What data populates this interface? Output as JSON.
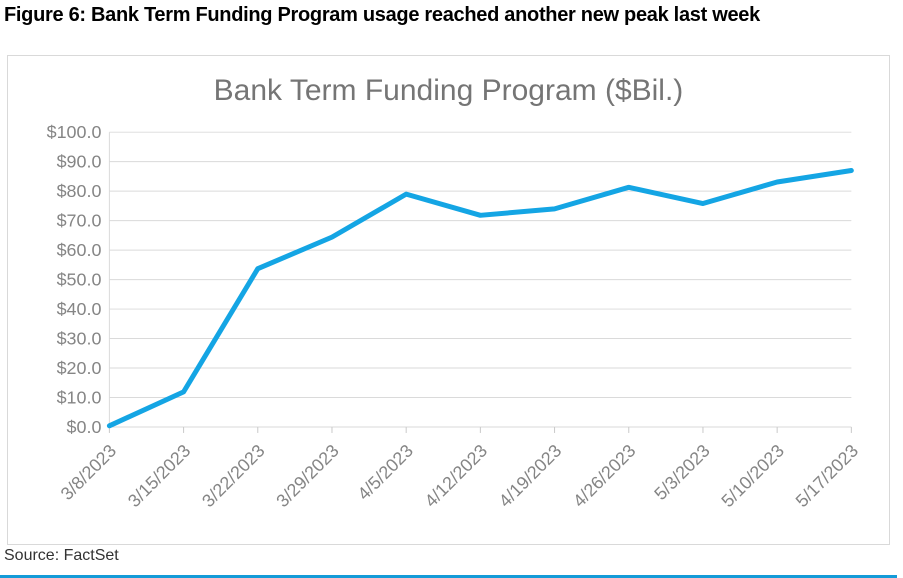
{
  "figure_title": "Figure 6: Bank Term Funding Program usage reached another new peak last week",
  "source": "Source: FactSet",
  "chart_data": {
    "type": "line",
    "title": "Bank Term Funding Program ($Bil.)",
    "x": [
      "3/8/2023",
      "3/15/2023",
      "3/22/2023",
      "3/29/2023",
      "4/5/2023",
      "4/12/2023",
      "4/19/2023",
      "4/26/2023",
      "5/3/2023",
      "5/10/2023",
      "5/17/2023"
    ],
    "values": [
      0.4,
      11.9,
      53.7,
      64.4,
      79.0,
      71.8,
      74.0,
      81.3,
      75.8,
      83.1,
      87.0
    ],
    "ylim": [
      0,
      100
    ],
    "y_tick_step": 10,
    "y_tick_labels": [
      "$0.0",
      "$10.0",
      "$20.0",
      "$30.0",
      "$40.0",
      "$50.0",
      "$60.0",
      "$70.0",
      "$80.0",
      "$90.0",
      "$100.0"
    ],
    "xlabel": "",
    "ylabel": "",
    "grid": "horizontal",
    "legend": "none",
    "line_color": "#14a5e4",
    "grid_color": "#dadada",
    "tick_color": "#c9c9c9",
    "axis_label_color": "#858585",
    "title_color": "#757575"
  },
  "colors": {
    "card_border": "#d9d9d9",
    "bottom_rule": "#149bd8"
  }
}
